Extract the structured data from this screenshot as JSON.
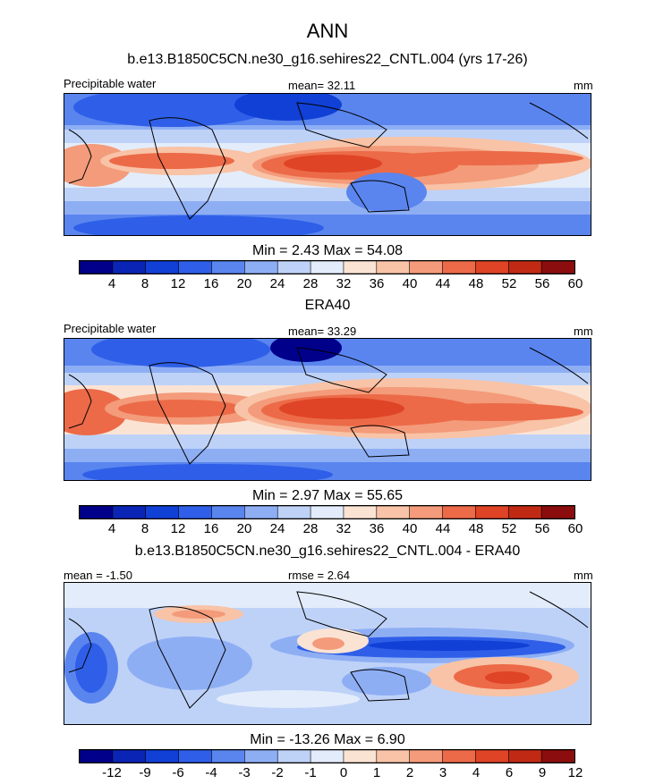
{
  "title": "ANN",
  "panels": [
    {
      "subtitle": "b.e13.B1850C5CN.ne30_g16.sehires22_CNTL.004 (yrs 17-26)",
      "left_label": "Precipitable water",
      "center_label": "mean=  32.11",
      "right_label": "mm",
      "minmax": "Min =   2.43 Max =  54.08",
      "ticks": [
        "4",
        "8",
        "12",
        "16",
        "20",
        "24",
        "28",
        "32",
        "36",
        "40",
        "44",
        "48",
        "52",
        "56",
        "60"
      ]
    },
    {
      "subtitle": "ERA40",
      "left_label": "Precipitable water",
      "center_label": "mean=  33.29",
      "right_label": "mm",
      "minmax": "Min =   2.97 Max =  55.65",
      "ticks": [
        "4",
        "8",
        "12",
        "16",
        "20",
        "24",
        "28",
        "32",
        "36",
        "40",
        "44",
        "48",
        "52",
        "56",
        "60"
      ]
    },
    {
      "subtitle": "b.e13.B1850C5CN.ne30_g16.sehires22_CNTL.004 - ERA40",
      "left_label": "mean =  -1.50",
      "center_label": "rmse =   2.64",
      "right_label": "mm",
      "minmax": "Min = -13.26 Max =   6.90",
      "ticks": [
        "-12",
        "-9",
        "-6",
        "-4",
        "-3",
        "-2",
        "-1",
        "0",
        "1",
        "2",
        "3",
        "4",
        "6",
        "9",
        "12"
      ]
    }
  ],
  "colors": [
    "#00008b",
    "#0a25b5",
    "#1040d5",
    "#2f5fe8",
    "#5a85ef",
    "#8eaef4",
    "#bed2f8",
    "#e3ecfb",
    "#fbe3d4",
    "#f8c3a6",
    "#f39b7a",
    "#ec6a48",
    "#de4425",
    "#c02a14",
    "#8b0d0d"
  ]
}
